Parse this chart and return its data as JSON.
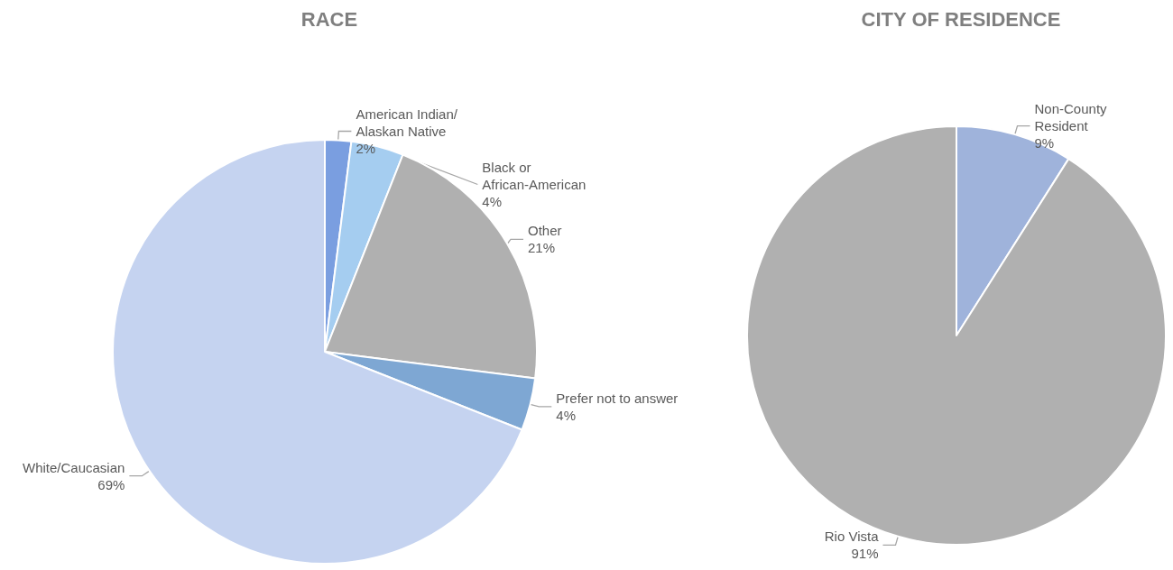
{
  "chart_data": [
    {
      "type": "pie",
      "title": "RACE",
      "categories": [
        "American Indian/Alaskan Native",
        "Black or African-American",
        "Other",
        "Prefer not to answer",
        "White/Caucasian"
      ],
      "values": [
        2,
        4,
        21,
        4,
        69
      ],
      "value_labels": [
        "2%",
        "4%",
        "21%",
        "4%",
        "69%"
      ],
      "colors": [
        "#7a9ee0",
        "#a5cdf0",
        "#b0b0b0",
        "#7ea7d3",
        "#c5d3f0"
      ]
    },
    {
      "type": "pie",
      "title": "CITY OF RESIDENCE",
      "categories": [
        "Non-County Resident",
        "Rio Vista"
      ],
      "values": [
        9,
        91
      ],
      "value_labels": [
        "9%",
        "91%"
      ],
      "colors": [
        "#9fb3db",
        "#b0b0b0"
      ]
    }
  ]
}
